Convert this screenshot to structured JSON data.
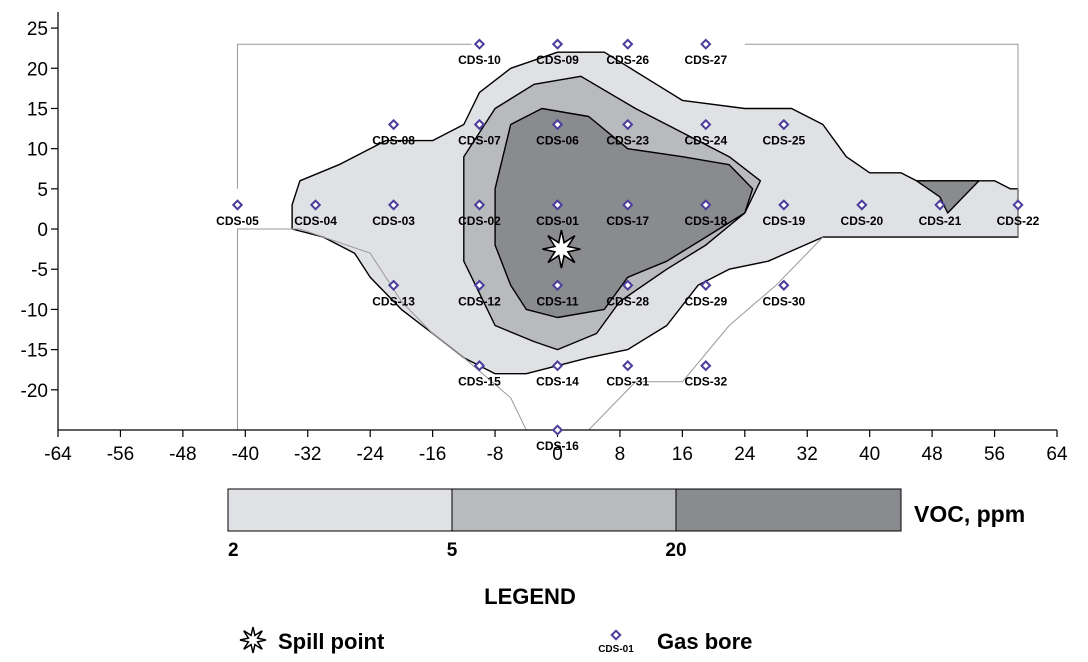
{
  "chart_data": {
    "type": "contour",
    "xlim": [
      -64,
      64
    ],
    "ylim": [
      -25,
      27
    ],
    "x_ticks": [
      -64,
      -56,
      -48,
      -40,
      -32,
      -24,
      -16,
      -8,
      0,
      8,
      16,
      24,
      32,
      40,
      48,
      56,
      64
    ],
    "y_ticks": [
      25,
      20,
      15,
      10,
      5,
      0,
      -5,
      -10,
      -15,
      -20
    ],
    "grid": false,
    "contour_levels": [
      2,
      5,
      20
    ],
    "contour_fills": [
      "#e0e1e5",
      "#b9babe",
      "#8a8b8f"
    ],
    "bores": [
      {
        "id": "CDS-01",
        "x": 0,
        "y": 3
      },
      {
        "id": "CDS-02",
        "x": -10,
        "y": 3
      },
      {
        "id": "CDS-03",
        "x": -21,
        "y": 3
      },
      {
        "id": "CDS-04",
        "x": -31,
        "y": 3
      },
      {
        "id": "CDS-05",
        "x": -41,
        "y": 3
      },
      {
        "id": "CDS-06",
        "x": 0,
        "y": 13
      },
      {
        "id": "CDS-07",
        "x": -10,
        "y": 13
      },
      {
        "id": "CDS-08",
        "x": -21,
        "y": 13
      },
      {
        "id": "CDS-09",
        "x": 0,
        "y": 23
      },
      {
        "id": "CDS-10",
        "x": -10,
        "y": 23
      },
      {
        "id": "CDS-11",
        "x": 0,
        "y": -7
      },
      {
        "id": "CDS-12",
        "x": -10,
        "y": -7
      },
      {
        "id": "CDS-13",
        "x": -21,
        "y": -7
      },
      {
        "id": "CDS-14",
        "x": 0,
        "y": -17
      },
      {
        "id": "CDS-15",
        "x": -10,
        "y": -17
      },
      {
        "id": "CDS-16",
        "x": 0,
        "y": -25
      },
      {
        "id": "CDS-17",
        "x": 9,
        "y": 3
      },
      {
        "id": "CDS-18",
        "x": 19,
        "y": 3
      },
      {
        "id": "CDS-19",
        "x": 29,
        "y": 3
      },
      {
        "id": "CDS-20",
        "x": 39,
        "y": 3
      },
      {
        "id": "CDS-21",
        "x": 49,
        "y": 3
      },
      {
        "id": "CDS-22",
        "x": 59,
        "y": 3
      },
      {
        "id": "CDS-23",
        "x": 9,
        "y": 13
      },
      {
        "id": "CDS-24",
        "x": 19,
        "y": 13
      },
      {
        "id": "CDS-25",
        "x": 29,
        "y": 13
      },
      {
        "id": "CDS-26",
        "x": 9,
        "y": 23
      },
      {
        "id": "CDS-27",
        "x": 19,
        "y": 23
      },
      {
        "id": "CDS-28",
        "x": 9,
        "y": -7
      },
      {
        "id": "CDS-29",
        "x": 19,
        "y": -7
      },
      {
        "id": "CDS-30",
        "x": 29,
        "y": -7
      },
      {
        "id": "CDS-31",
        "x": 9,
        "y": -17
      },
      {
        "id": "CDS-32",
        "x": 19,
        "y": -17
      }
    ],
    "spill_point": {
      "x": 0.5,
      "y": -2.5
    },
    "contours": {
      "level_2": [
        [
          -33,
          6
        ],
        [
          -28,
          8
        ],
        [
          -22,
          11
        ],
        [
          -16,
          11
        ],
        [
          -12,
          13
        ],
        [
          -10,
          17
        ],
        [
          -6,
          20
        ],
        [
          0,
          22
        ],
        [
          6,
          22
        ],
        [
          11,
          19
        ],
        [
          16,
          16
        ],
        [
          24,
          15
        ],
        [
          30,
          15
        ],
        [
          34,
          13
        ],
        [
          37,
          9
        ],
        [
          40,
          7
        ],
        [
          44,
          7
        ],
        [
          46,
          6
        ],
        [
          56,
          6
        ],
        [
          58,
          5
        ],
        [
          59,
          5
        ],
        [
          59,
          2
        ],
        [
          59,
          -1
        ],
        [
          49,
          -1
        ],
        [
          40,
          -1
        ],
        [
          34,
          -1
        ],
        [
          27,
          -4
        ],
        [
          22,
          -5
        ],
        [
          18,
          -7
        ],
        [
          14,
          -12
        ],
        [
          9,
          -15
        ],
        [
          4,
          -16
        ],
        [
          0,
          -17
        ],
        [
          -4,
          -18
        ],
        [
          -8,
          -18
        ],
        [
          -12,
          -16
        ],
        [
          -16,
          -13
        ],
        [
          -20,
          -10
        ],
        [
          -24,
          -6
        ],
        [
          -26,
          -3
        ],
        [
          -30,
          -1
        ],
        [
          -34,
          0
        ],
        [
          -34,
          3
        ]
      ],
      "level_5": [
        [
          -12,
          2
        ],
        [
          -12,
          9
        ],
        [
          -8,
          15
        ],
        [
          -3,
          18
        ],
        [
          3,
          19
        ],
        [
          10,
          15
        ],
        [
          16,
          12
        ],
        [
          22,
          9
        ],
        [
          26,
          6
        ],
        [
          24,
          2
        ],
        [
          19,
          -2
        ],
        [
          14,
          -5
        ],
        [
          8,
          -9
        ],
        [
          5,
          -13
        ],
        [
          0,
          -15
        ],
        [
          -3,
          -14
        ],
        [
          -8,
          -12
        ],
        [
          -10,
          -8
        ],
        [
          -12,
          -4
        ]
      ],
      "level_20": [
        [
          -8,
          5
        ],
        [
          -6,
          13
        ],
        [
          -2,
          15
        ],
        [
          4,
          14
        ],
        [
          9,
          10
        ],
        [
          16,
          9
        ],
        [
          22,
          8
        ],
        [
          25,
          5
        ],
        [
          24,
          2
        ],
        [
          19,
          -1
        ],
        [
          14,
          -4
        ],
        [
          9,
          -6
        ],
        [
          6,
          -10
        ],
        [
          0,
          -11
        ],
        [
          -4,
          -10
        ],
        [
          -6,
          -7
        ],
        [
          -8,
          -2
        ]
      ],
      "level_20_east": [
        [
          46,
          6
        ],
        [
          49,
          4
        ],
        [
          50,
          2
        ],
        [
          52,
          4
        ],
        [
          54,
          6
        ]
      ]
    }
  },
  "legend": {
    "colorbar_labels": [
      "2",
      "5",
      "20"
    ],
    "unit_label": "VOC, ppm",
    "title": "LEGEND",
    "spill_label": "Spill point",
    "bore_sample_id": "CDS-01",
    "bore_label": "Gas bore"
  }
}
